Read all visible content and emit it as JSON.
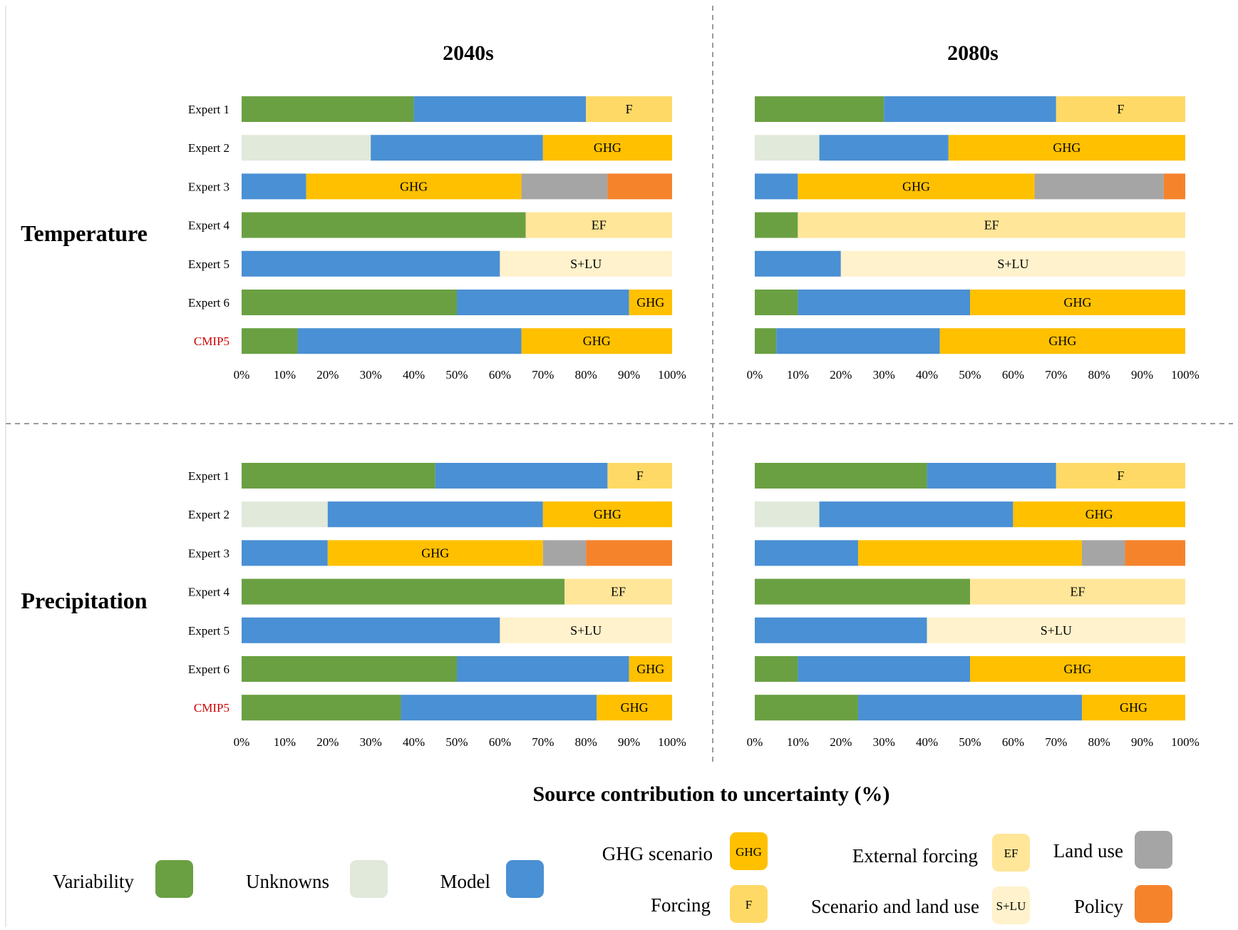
{
  "figure": {
    "xlabel": "Source contribution to uncertainty (%)",
    "column_titles": [
      "2040s",
      "2080s"
    ],
    "row_titles": [
      "Temperature",
      "Precipitation"
    ]
  },
  "colors": {
    "variability": "#6aa042",
    "unknowns": "#e0e9da",
    "model": "#4a90d4",
    "ghg": "#ffc000",
    "forcing": "#ffd966",
    "external_forcing": "#ffe699",
    "slu": "#fff2cc",
    "landuse": "#a5a5a5",
    "policy": "#f5832b",
    "cmip5_label": "#cc0000"
  },
  "legend": {
    "items": [
      {
        "key": "variability",
        "label": "Variability",
        "code": ""
      },
      {
        "key": "unknowns",
        "label": "Unknowns",
        "code": ""
      },
      {
        "key": "model",
        "label": "Model",
        "code": ""
      },
      {
        "key": "ghg",
        "label": "GHG scenario",
        "code": "GHG"
      },
      {
        "key": "forcing",
        "label": "Forcing",
        "code": "F"
      },
      {
        "key": "external_forcing",
        "label": "External forcing",
        "code": "EF"
      },
      {
        "key": "slu",
        "label": "Scenario and land use",
        "code": "S+LU"
      },
      {
        "key": "landuse",
        "label": "Land use",
        "code": ""
      },
      {
        "key": "policy",
        "label": "Policy",
        "code": ""
      }
    ]
  },
  "chart_data": [
    {
      "type": "bar",
      "orientation": "horizontal",
      "stacked": true,
      "title": "2040s",
      "row_label": "Temperature",
      "categories": [
        "Expert 1",
        "Expert 2",
        "Expert 3",
        "Expert 4",
        "Expert 5",
        "Expert 6",
        "CMIP5"
      ],
      "xlim": [
        0,
        100
      ],
      "xticks": [
        "0%",
        "10%",
        "20%",
        "30%",
        "40%",
        "50%",
        "60%",
        "70%",
        "80%",
        "90%",
        "100%"
      ],
      "bars": [
        [
          {
            "key": "variability",
            "value": 40
          },
          {
            "key": "model",
            "value": 40
          },
          {
            "key": "forcing",
            "value": 20,
            "label": "F"
          }
        ],
        [
          {
            "key": "unknowns",
            "value": 30
          },
          {
            "key": "model",
            "value": 40
          },
          {
            "key": "ghg",
            "value": 30,
            "label": "GHG"
          }
        ],
        [
          {
            "key": "model",
            "value": 15
          },
          {
            "key": "ghg",
            "value": 50,
            "label": "GHG"
          },
          {
            "key": "landuse",
            "value": 20
          },
          {
            "key": "policy",
            "value": 15
          }
        ],
        [
          {
            "key": "variability",
            "value": 66
          },
          {
            "key": "external_forcing",
            "value": 34,
            "label": "EF"
          }
        ],
        [
          {
            "key": "model",
            "value": 60
          },
          {
            "key": "slu",
            "value": 40,
            "label": "S+LU"
          }
        ],
        [
          {
            "key": "variability",
            "value": 50
          },
          {
            "key": "model",
            "value": 40
          },
          {
            "key": "ghg",
            "value": 10,
            "label": "GHG"
          }
        ],
        [
          {
            "key": "variability",
            "value": 13
          },
          {
            "key": "model",
            "value": 52
          },
          {
            "key": "ghg",
            "value": 35,
            "label": "GHG"
          }
        ]
      ]
    },
    {
      "type": "bar",
      "orientation": "horizontal",
      "stacked": true,
      "title": "2080s",
      "row_label": "Temperature",
      "categories": [
        "Expert 1",
        "Expert 2",
        "Expert 3",
        "Expert 4",
        "Expert 5",
        "Expert 6",
        "CMIP5"
      ],
      "xlim": [
        0,
        100
      ],
      "xticks": [
        "0%",
        "10%",
        "20%",
        "30%",
        "40%",
        "50%",
        "60%",
        "70%",
        "80%",
        "90%",
        "100%"
      ],
      "bars": [
        [
          {
            "key": "variability",
            "value": 30
          },
          {
            "key": "model",
            "value": 40
          },
          {
            "key": "forcing",
            "value": 30,
            "label": "F"
          }
        ],
        [
          {
            "key": "unknowns",
            "value": 15
          },
          {
            "key": "model",
            "value": 30
          },
          {
            "key": "ghg",
            "value": 55,
            "label": "GHG"
          }
        ],
        [
          {
            "key": "model",
            "value": 10
          },
          {
            "key": "ghg",
            "value": 55,
            "label": "GHG"
          },
          {
            "key": "landuse",
            "value": 30
          },
          {
            "key": "policy",
            "value": 5
          }
        ],
        [
          {
            "key": "variability",
            "value": 10
          },
          {
            "key": "external_forcing",
            "value": 90,
            "label": "EF"
          }
        ],
        [
          {
            "key": "model",
            "value": 20
          },
          {
            "key": "slu",
            "value": 80,
            "label": "S+LU"
          }
        ],
        [
          {
            "key": "variability",
            "value": 10
          },
          {
            "key": "model",
            "value": 40
          },
          {
            "key": "ghg",
            "value": 50,
            "label": "GHG"
          }
        ],
        [
          {
            "key": "variability",
            "value": 5
          },
          {
            "key": "model",
            "value": 38
          },
          {
            "key": "ghg",
            "value": 57,
            "label": "GHG"
          }
        ]
      ]
    },
    {
      "type": "bar",
      "orientation": "horizontal",
      "stacked": true,
      "title": "2040s",
      "row_label": "Precipitation",
      "categories": [
        "Expert 1",
        "Expert 2",
        "Expert 3",
        "Expert 4",
        "Expert 5",
        "Expert 6",
        "CMIP5"
      ],
      "xlim": [
        0,
        100
      ],
      "xticks": [
        "0%",
        "10%",
        "20%",
        "30%",
        "40%",
        "50%",
        "60%",
        "70%",
        "80%",
        "90%",
        "100%"
      ],
      "bars": [
        [
          {
            "key": "variability",
            "value": 45
          },
          {
            "key": "model",
            "value": 40
          },
          {
            "key": "forcing",
            "value": 15,
            "label": "F"
          }
        ],
        [
          {
            "key": "unknowns",
            "value": 20
          },
          {
            "key": "model",
            "value": 50
          },
          {
            "key": "ghg",
            "value": 30,
            "label": "GHG"
          }
        ],
        [
          {
            "key": "model",
            "value": 20
          },
          {
            "key": "ghg",
            "value": 50,
            "label": "GHG"
          },
          {
            "key": "landuse",
            "value": 10
          },
          {
            "key": "policy",
            "value": 20
          }
        ],
        [
          {
            "key": "variability",
            "value": 75
          },
          {
            "key": "external_forcing",
            "value": 25,
            "label": "EF"
          }
        ],
        [
          {
            "key": "model",
            "value": 60
          },
          {
            "key": "slu",
            "value": 40,
            "label": "S+LU"
          }
        ],
        [
          {
            "key": "variability",
            "value": 50
          },
          {
            "key": "model",
            "value": 40
          },
          {
            "key": "ghg",
            "value": 10,
            "label": "GHG"
          }
        ],
        [
          {
            "key": "variability",
            "value": 37
          },
          {
            "key": "model",
            "value": 45.5
          },
          {
            "key": "ghg",
            "value": 17.5,
            "label": "GHG"
          }
        ]
      ]
    },
    {
      "type": "bar",
      "orientation": "horizontal",
      "stacked": true,
      "title": "2080s",
      "row_label": "Precipitation",
      "categories": [
        "Expert 1",
        "Expert 2",
        "Expert 3",
        "Expert 4",
        "Expert 5",
        "Expert 6",
        "CMIP5"
      ],
      "xlim": [
        0,
        100
      ],
      "xticks": [
        "0%",
        "10%",
        "20%",
        "30%",
        "40%",
        "50%",
        "60%",
        "70%",
        "80%",
        "90%",
        "100%"
      ],
      "bars": [
        [
          {
            "key": "variability",
            "value": 40
          },
          {
            "key": "model",
            "value": 30
          },
          {
            "key": "forcing",
            "value": 30,
            "label": "F"
          }
        ],
        [
          {
            "key": "unknowns",
            "value": 15
          },
          {
            "key": "model",
            "value": 45
          },
          {
            "key": "ghg",
            "value": 40,
            "label": "GHG"
          }
        ],
        [
          {
            "key": "model",
            "value": 24
          },
          {
            "key": "ghg",
            "value": 52
          },
          {
            "key": "landuse",
            "value": 10
          },
          {
            "key": "policy",
            "value": 14
          }
        ],
        [
          {
            "key": "variability",
            "value": 50
          },
          {
            "key": "external_forcing",
            "value": 50,
            "label": "EF"
          }
        ],
        [
          {
            "key": "model",
            "value": 40
          },
          {
            "key": "slu",
            "value": 60,
            "label": "S+LU"
          }
        ],
        [
          {
            "key": "variability",
            "value": 10
          },
          {
            "key": "model",
            "value": 40
          },
          {
            "key": "ghg",
            "value": 50,
            "label": "GHG"
          }
        ],
        [
          {
            "key": "variability",
            "value": 24
          },
          {
            "key": "model",
            "value": 52
          },
          {
            "key": "ghg",
            "value": 24,
            "label": "GHG"
          }
        ]
      ]
    }
  ]
}
